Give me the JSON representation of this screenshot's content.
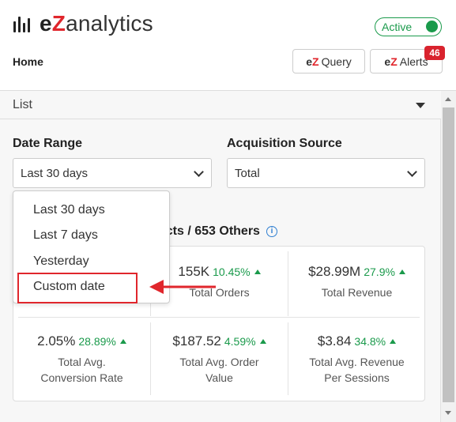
{
  "header": {
    "brand_prefix": "e",
    "brand_z": "Z",
    "brand_suffix": "analytics",
    "status_label": "Active",
    "page_title": "Home",
    "buttons": {
      "query": {
        "prefix": "e",
        "z": "Z",
        "label": "Query"
      },
      "alerts": {
        "prefix": "e",
        "z": "Z",
        "label": "Alerts",
        "badge": "46"
      }
    },
    "colors": {
      "brand_red": "#e0262c",
      "active_green": "#1a9a4b"
    }
  },
  "view_select": {
    "label": "List"
  },
  "filters": {
    "date_range": {
      "label": "Date Range",
      "value": "Last 30 days"
    },
    "acquisition_source": {
      "label": "Acquisition Source",
      "value": "Total"
    }
  },
  "date_dropdown": {
    "options": [
      "Last 30 days",
      "Last 7 days",
      "Yesterday",
      "Custom date"
    ],
    "highlighted": "Custom date"
  },
  "section": {
    "title": "ucts / 653 Others",
    "info_icon": "info-icon"
  },
  "metrics": [
    {
      "value": "155K",
      "change": "10.45%",
      "label": "Total Orders"
    },
    {
      "value": "$28.99M",
      "change": "27.9%",
      "label": "Total Revenue"
    },
    {
      "value": "2.05%",
      "change": "28.89%",
      "label_line1": "Total Avg.",
      "label_line2": "Conversion Rate"
    },
    {
      "value": "$187.52",
      "change": "4.59%",
      "label_line1": "Total Avg. Order",
      "label_line2": "Value"
    },
    {
      "value": "$3.84",
      "change": "34.8%",
      "label_line1": "Total Avg. Revenue",
      "label_line2": "Per Sessions"
    }
  ]
}
